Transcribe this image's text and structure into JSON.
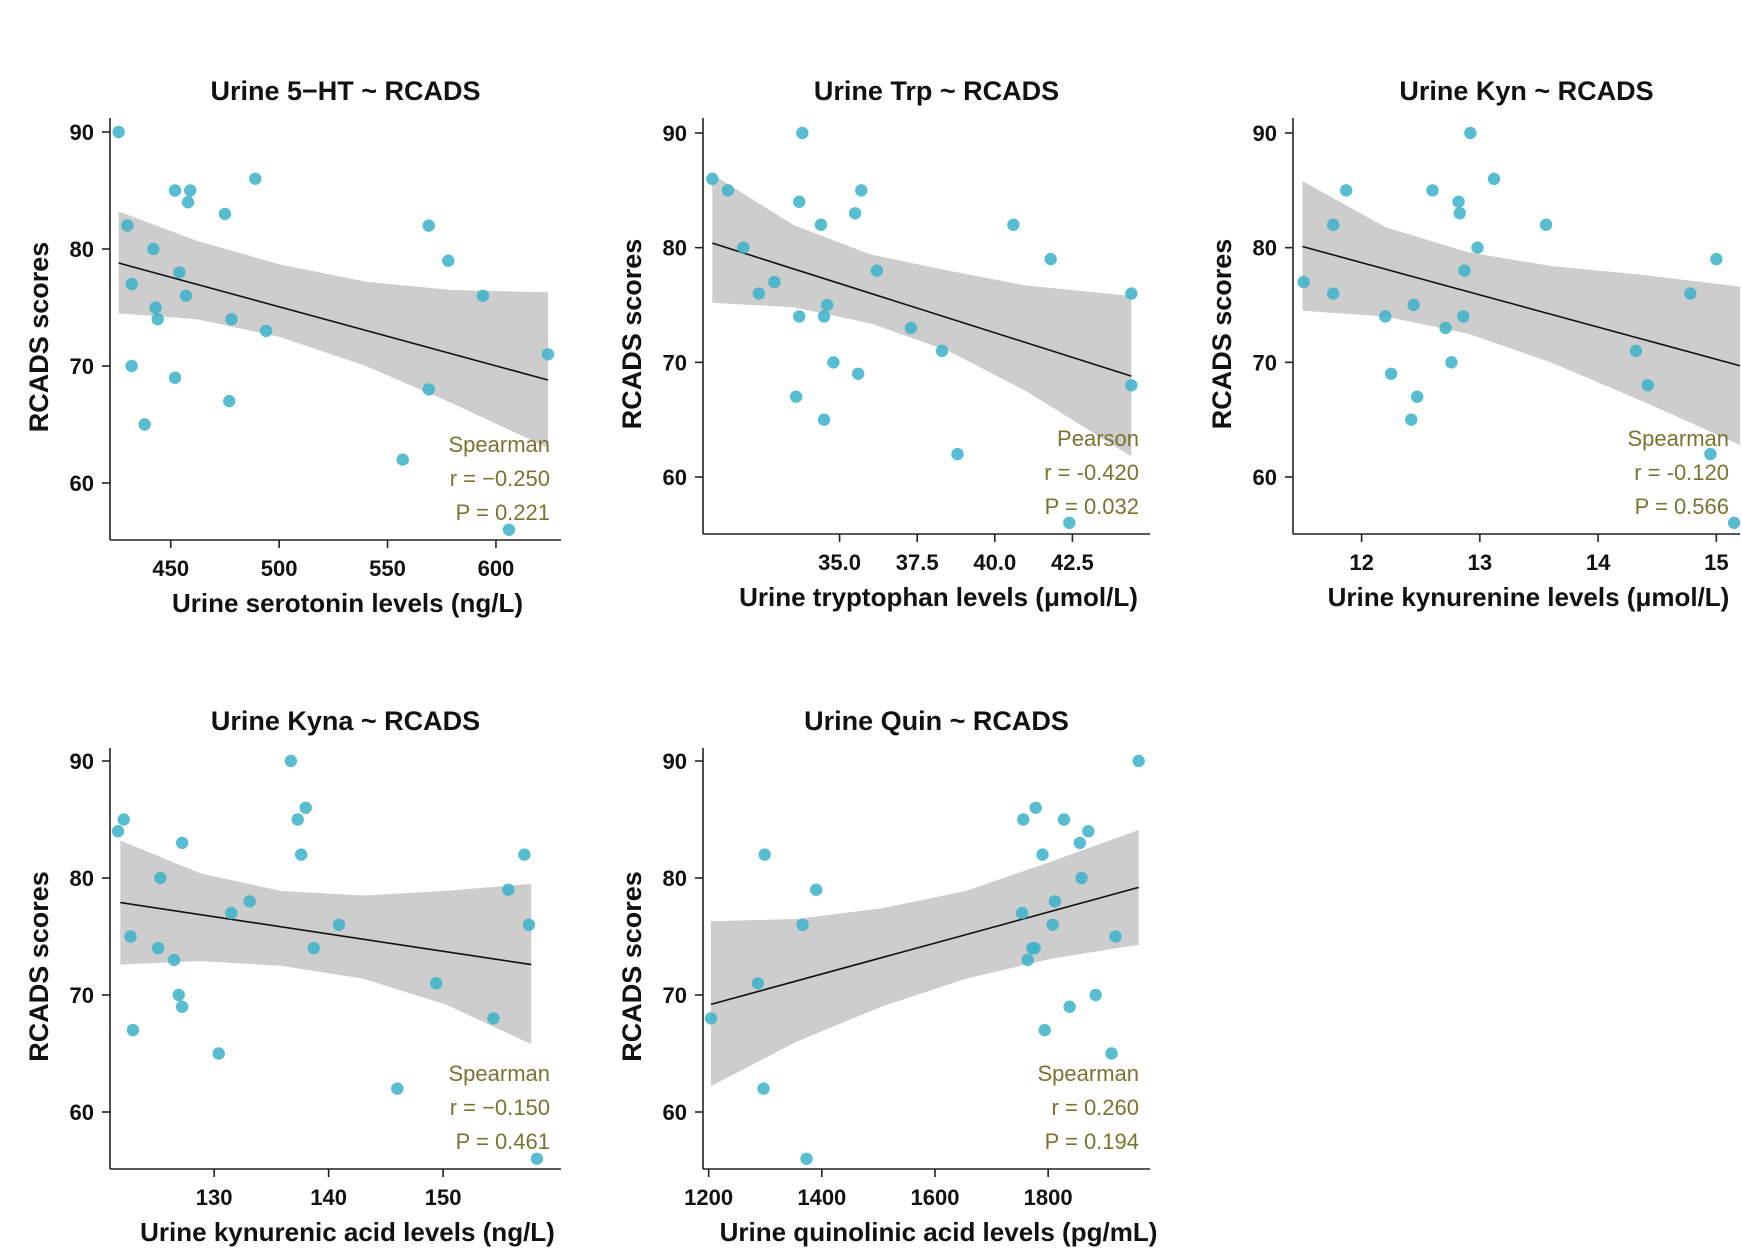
{
  "chart_data": [
    {
      "type": "scatter",
      "title": "Urine 5−HT ~ RCADS",
      "xlabel": "Urine serotonin levels (ng/L)",
      "ylabel": "RCADS scores",
      "xlim": [
        422,
        630
      ],
      "ylim": [
        55,
        91
      ],
      "xticks": [
        450,
        500,
        550,
        600
      ],
      "xtick_labels": [
        "450",
        "500",
        "550",
        "600"
      ],
      "yticks": [
        60,
        70,
        80,
        90
      ],
      "ytick_labels": [
        "60",
        "70",
        "80",
        "90"
      ],
      "fit": {
        "x": [
          426,
          624
        ],
        "y": [
          78.8,
          68.8
        ]
      },
      "band": {
        "x": [
          426,
          462,
          500,
          540,
          580,
          624
        ],
        "lower": [
          74.5,
          74.0,
          72.5,
          70.0,
          66.8,
          63.0
        ],
        "upper": [
          83.2,
          80.7,
          78.7,
          77.2,
          76.5,
          76.3
        ]
      },
      "stats": [
        "Spearman",
        "r = −0.250",
        "P = 0.221"
      ],
      "points": [
        [
          426,
          90
        ],
        [
          430,
          82
        ],
        [
          432,
          77
        ],
        [
          432,
          70
        ],
        [
          438,
          65
        ],
        [
          442,
          80
        ],
        [
          443,
          75
        ],
        [
          444,
          74
        ],
        [
          452,
          85
        ],
        [
          452,
          69
        ],
        [
          454,
          78
        ],
        [
          457,
          76
        ],
        [
          458,
          84
        ],
        [
          459,
          85
        ],
        [
          475,
          83
        ],
        [
          477,
          67
        ],
        [
          478,
          74
        ],
        [
          489,
          86
        ],
        [
          494,
          73
        ],
        [
          557,
          62
        ],
        [
          569,
          68
        ],
        [
          569,
          82
        ],
        [
          578,
          79
        ],
        [
          594,
          76
        ],
        [
          606,
          56
        ],
        [
          624,
          71
        ]
      ]
    },
    {
      "type": "scatter",
      "title": "Urine Trp ~ RCADS",
      "xlabel": "Urine tryptophan levels (μmol/L)",
      "ylabel": "RCADS scores",
      "xlim": [
        30.6,
        45.0
      ],
      "ylim": [
        55,
        91
      ],
      "xticks": [
        35.0,
        37.5,
        40.0,
        42.5
      ],
      "xtick_labels": [
        "35.0",
        "37.5",
        "40.0",
        "42.5"
      ],
      "yticks": [
        60,
        70,
        80,
        90
      ],
      "ytick_labels": [
        "60",
        "70",
        "80",
        "90"
      ],
      "fit": {
        "x": [
          30.9,
          44.4
        ],
        "y": [
          80.4,
          68.8
        ]
      },
      "band": {
        "x": [
          30.9,
          33.5,
          36.0,
          38.5,
          41.0,
          44.4
        ],
        "lower": [
          75.2,
          74.8,
          73.4,
          71.0,
          67.5,
          61.8
        ],
        "upper": [
          86.4,
          82.0,
          79.4,
          78.0,
          76.7,
          75.8
        ]
      },
      "stats": [
        "Pearson",
        "r = -0.420",
        "P = 0.032"
      ],
      "points": [
        [
          30.9,
          86
        ],
        [
          31.4,
          85
        ],
        [
          31.9,
          80
        ],
        [
          32.4,
          76
        ],
        [
          32.9,
          77
        ],
        [
          33.6,
          67
        ],
        [
          33.7,
          84
        ],
        [
          33.7,
          74
        ],
        [
          33.8,
          90
        ],
        [
          34.4,
          82
        ],
        [
          34.5,
          65
        ],
        [
          34.5,
          74
        ],
        [
          34.6,
          75
        ],
        [
          34.8,
          70
        ],
        [
          35.5,
          83
        ],
        [
          35.6,
          69
        ],
        [
          35.7,
          85
        ],
        [
          36.2,
          78
        ],
        [
          37.3,
          73
        ],
        [
          38.3,
          71
        ],
        [
          38.8,
          62
        ],
        [
          40.6,
          82
        ],
        [
          41.8,
          79
        ],
        [
          42.4,
          56
        ],
        [
          44.4,
          76
        ],
        [
          44.4,
          68
        ]
      ]
    },
    {
      "type": "scatter",
      "title": "Urine Kyn ~ RCADS",
      "xlabel": "Urine kynurenine levels (μmol/L)",
      "ylabel": "RCADS scores",
      "xlim": [
        11.42,
        15.2
      ],
      "ylim": [
        55,
        91
      ],
      "xticks": [
        12,
        13,
        14,
        15
      ],
      "xtick_labels": [
        "12",
        "13",
        "14",
        "15"
      ],
      "yticks": [
        60,
        70,
        80,
        90
      ],
      "ytick_labels": [
        "60",
        "70",
        "80",
        "90"
      ],
      "fit": {
        "x": [
          11.5,
          15.2
        ],
        "y": [
          80.1,
          69.7
        ]
      },
      "band": {
        "x": [
          11.5,
          12.2,
          12.9,
          13.6,
          14.4,
          15.2
        ],
        "lower": [
          74.5,
          74.0,
          72.5,
          70.0,
          66.5,
          62.8
        ],
        "upper": [
          85.8,
          81.8,
          79.6,
          78.4,
          77.6,
          76.6
        ]
      },
      "stats": [
        "Spearman",
        "r = -0.120",
        "P = 0.566"
      ],
      "points": [
        [
          11.51,
          77
        ],
        [
          11.76,
          82
        ],
        [
          11.76,
          76
        ],
        [
          11.87,
          85
        ],
        [
          12.2,
          74
        ],
        [
          12.25,
          69
        ],
        [
          12.42,
          65
        ],
        [
          12.44,
          75
        ],
        [
          12.47,
          67
        ],
        [
          12.6,
          85
        ],
        [
          12.71,
          73
        ],
        [
          12.76,
          70
        ],
        [
          12.82,
          84
        ],
        [
          12.83,
          83
        ],
        [
          12.86,
          74
        ],
        [
          12.87,
          78
        ],
        [
          12.92,
          90
        ],
        [
          12.98,
          80
        ],
        [
          13.12,
          86
        ],
        [
          13.56,
          82
        ],
        [
          14.32,
          71
        ],
        [
          14.42,
          68
        ],
        [
          14.78,
          76
        ],
        [
          14.95,
          62
        ],
        [
          15.0,
          79
        ],
        [
          15.15,
          56
        ]
      ]
    },
    {
      "type": "scatter",
      "title": "Urine Kyna ~ RCADS",
      "xlabel": "Urine kynurenic acid levels (ng/L)",
      "ylabel": "RCADS scores",
      "xlim": [
        120.9,
        160.3
      ],
      "ylim": [
        55,
        91
      ],
      "xticks": [
        130,
        140,
        150
      ],
      "xtick_labels": [
        "130",
        "140",
        "150"
      ],
      "yticks": [
        60,
        70,
        80,
        90
      ],
      "ytick_labels": [
        "60",
        "70",
        "80",
        "90"
      ],
      "fit": {
        "x": [
          121.8,
          157.7
        ],
        "y": [
          77.9,
          72.6
        ]
      },
      "band": {
        "x": [
          121.8,
          128.8,
          135.8,
          143.0,
          150.2,
          157.7
        ],
        "lower": [
          72.6,
          72.9,
          72.5,
          71.4,
          69.2,
          65.8
        ],
        "upper": [
          83.2,
          80.4,
          78.9,
          78.5,
          78.9,
          79.5
        ]
      },
      "stats": [
        "Spearman",
        "r = −0.150",
        "P = 0.461"
      ],
      "points": [
        [
          121.6,
          84
        ],
        [
          122.1,
          85
        ],
        [
          122.7,
          75
        ],
        [
          122.9,
          67
        ],
        [
          125.1,
          74
        ],
        [
          125.3,
          80
        ],
        [
          126.5,
          73
        ],
        [
          126.9,
          70
        ],
        [
          127.2,
          69
        ],
        [
          127.2,
          83
        ],
        [
          130.4,
          65
        ],
        [
          131.5,
          77
        ],
        [
          133.1,
          78
        ],
        [
          136.7,
          90
        ],
        [
          137.3,
          85
        ],
        [
          137.6,
          82
        ],
        [
          138.0,
          86
        ],
        [
          138.7,
          74
        ],
        [
          140.9,
          76
        ],
        [
          146.0,
          62
        ],
        [
          149.4,
          71
        ],
        [
          154.4,
          68
        ],
        [
          155.7,
          79
        ],
        [
          157.1,
          82
        ],
        [
          157.5,
          76
        ],
        [
          158.2,
          56
        ]
      ]
    },
    {
      "type": "scatter",
      "title": "Urine Quin ~ RCADS",
      "xlabel": "Urine quinolinic acid levels (pg/mL)",
      "ylabel": "RCADS scores",
      "xlim": [
        1190,
        1980
      ],
      "ylim": [
        55,
        91
      ],
      "xticks": [
        1200,
        1400,
        1600,
        1800
      ],
      "xtick_labels": [
        "1200",
        "1400",
        "1600",
        "1800"
      ],
      "yticks": [
        60,
        70,
        80,
        90
      ],
      "ytick_labels": [
        "60",
        "70",
        "80",
        "90"
      ],
      "fit": {
        "x": [
          1204,
          1960
        ],
        "y": [
          69.2,
          79.2
        ]
      },
      "band": {
        "x": [
          1204,
          1355,
          1505,
          1655,
          1805,
          1960
        ],
        "lower": [
          62.2,
          66.0,
          69.0,
          71.4,
          73.1,
          74.3
        ],
        "upper": [
          76.3,
          76.5,
          77.4,
          78.9,
          81.4,
          84.1
        ]
      },
      "stats": [
        "Spearman",
        "r = 0.260",
        "P = 0.194"
      ],
      "points": [
        [
          1204,
          68
        ],
        [
          1287,
          71
        ],
        [
          1297,
          62
        ],
        [
          1299,
          82
        ],
        [
          1366,
          76
        ],
        [
          1373,
          56
        ],
        [
          1390,
          79
        ],
        [
          1754,
          77
        ],
        [
          1756,
          85
        ],
        [
          1764,
          73
        ],
        [
          1772,
          74
        ],
        [
          1776,
          74
        ],
        [
          1778,
          86
        ],
        [
          1790,
          82
        ],
        [
          1794,
          67
        ],
        [
          1808,
          76
        ],
        [
          1812,
          78
        ],
        [
          1828,
          85
        ],
        [
          1838,
          69
        ],
        [
          1856,
          83
        ],
        [
          1859,
          80
        ],
        [
          1871,
          84
        ],
        [
          1884,
          70
        ],
        [
          1912,
          65
        ],
        [
          1919,
          75
        ],
        [
          1960,
          90
        ]
      ]
    }
  ]
}
